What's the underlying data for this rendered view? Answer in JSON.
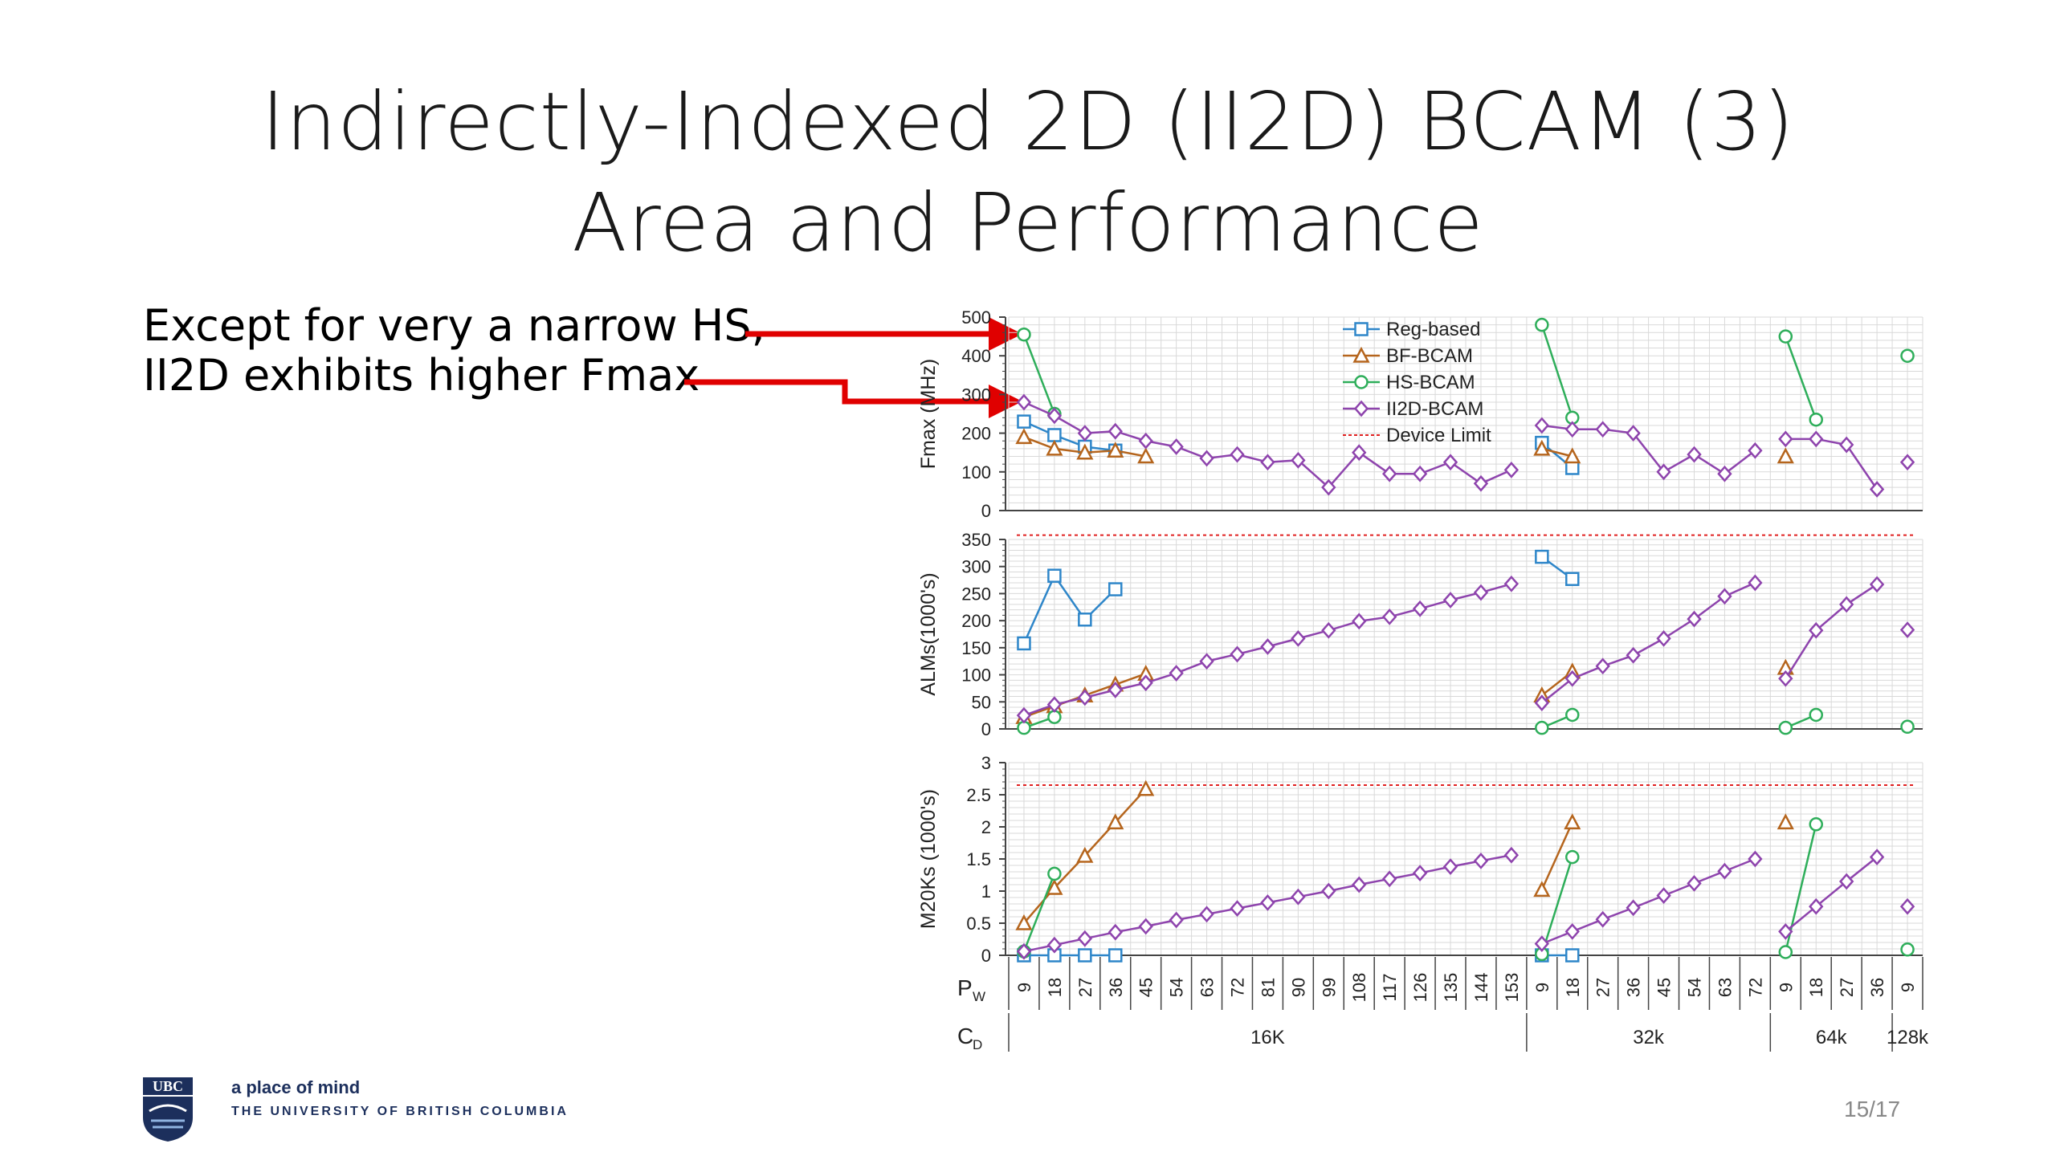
{
  "slide": {
    "title_line1": "Indirectly-Indexed 2D (II2D) BCAM (3)",
    "title_line2": "Area and Performance",
    "callout_line1": "Except for very a narrow HS,",
    "callout_line2": "II2D exhibits higher Fmax",
    "tagline": "a place of mind",
    "university": "THE UNIVERSITY OF BRITISH COLUMBIA",
    "logo_text": "UBC",
    "page_number": "15/17"
  },
  "chart_data": {
    "type": "line",
    "x_axis": {
      "row1_label": "P",
      "row1_label_sub": "W",
      "row2_label": "C",
      "row2_label_sub": "D",
      "groups": [
        {
          "label": "16K",
          "pw": [
            "9",
            "18",
            "27",
            "36",
            "45",
            "54",
            "63",
            "72",
            "81",
            "90",
            "99",
            "108",
            "117",
            "126",
            "135",
            "144",
            "153"
          ]
        },
        {
          "label": "32k",
          "pw": [
            "9",
            "18",
            "27",
            "36",
            "45",
            "54",
            "63",
            "72"
          ]
        },
        {
          "label": "64k",
          "pw": [
            "9",
            "18",
            "27",
            "36"
          ]
        },
        {
          "label": "128k",
          "pw": [
            "9"
          ]
        }
      ]
    },
    "legend": {
      "placement": "top-center of first panel",
      "entries": [
        "Reg-based",
        "BF-BCAM",
        "HS-BCAM",
        "II2D-BCAM",
        "Device Limit"
      ]
    },
    "colors": {
      "Reg-based": "#2e86c9",
      "BF-BCAM": "#b5651d",
      "HS-BCAM": "#2eae5a",
      "II2D-BCAM": "#8e44ad",
      "Device Limit": "#e02020",
      "grid": "#d9d9d9"
    },
    "panels": [
      {
        "ylabel": "Fmax (MHz)",
        "ylim": [
          0,
          500
        ],
        "yticks": [
          "0",
          "100",
          "200",
          "300",
          "400",
          "500"
        ],
        "device_limit": null,
        "series": [
          {
            "name": "Reg-based",
            "segments": [
              [
                [
                  0,
                  230
                ],
                [
                  1,
                  195
                ],
                [
                  2,
                  165
                ],
                [
                  3,
                  155
                ]
              ],
              [
                [
                  17,
                  175
                ],
                [
                  18,
                  110
                ]
              ]
            ]
          },
          {
            "name": "BF-BCAM",
            "segments": [
              [
                [
                  0,
                  190
                ],
                [
                  1,
                  160
                ],
                [
                  2,
                  150
                ],
                [
                  3,
                  155
                ],
                [
                  4,
                  140
                ]
              ],
              [
                [
                  17,
                  160
                ],
                [
                  18,
                  140
                ]
              ],
              [
                [
                  25,
                  140
                ]
              ]
            ]
          },
          {
            "name": "HS-BCAM",
            "segments": [
              [
                [
                  0,
                  455
                ],
                [
                  1,
                  250
                ]
              ],
              [
                [
                  17,
                  480
                ],
                [
                  18,
                  240
                ]
              ],
              [
                [
                  25,
                  450
                ],
                [
                  26,
                  235
                ]
              ],
              [
                [
                  29,
                  400
                ]
              ]
            ]
          },
          {
            "name": "II2D-BCAM",
            "segments": [
              [
                [
                  0,
                  280
                ],
                [
                  1,
                  245
                ],
                [
                  2,
                  200
                ],
                [
                  3,
                  205
                ],
                [
                  4,
                  180
                ],
                [
                  5,
                  165
                ],
                [
                  6,
                  135
                ],
                [
                  7,
                  145
                ],
                [
                  8,
                  125
                ],
                [
                  9,
                  130
                ],
                [
                  10,
                  60
                ],
                [
                  11,
                  150
                ],
                [
                  12,
                  95
                ],
                [
                  13,
                  95
                ],
                [
                  14,
                  125
                ],
                [
                  15,
                  70
                ],
                [
                  16,
                  105
                ]
              ],
              [
                [
                  17,
                  220
                ],
                [
                  18,
                  210
                ],
                [
                  19,
                  210
                ],
                [
                  20,
                  200
                ],
                [
                  21,
                  100
                ],
                [
                  22,
                  145
                ],
                [
                  23,
                  95
                ],
                [
                  24,
                  155
                ]
              ],
              [
                [
                  25,
                  185
                ],
                [
                  26,
                  185
                ],
                [
                  27,
                  170
                ],
                [
                  28,
                  55
                ]
              ],
              [
                [
                  29,
                  125
                ]
              ]
            ]
          }
        ]
      },
      {
        "ylabel": "ALMs(1000's)",
        "ylim": [
          0,
          350
        ],
        "yticks": [
          "0",
          "50",
          "100",
          "150",
          "200",
          "250",
          "300",
          "350"
        ],
        "device_limit": 358,
        "series": [
          {
            "name": "Reg-based",
            "segments": [
              [
                [
                  0,
                  158
                ],
                [
                  1,
                  283
                ],
                [
                  2,
                  202
                ],
                [
                  3,
                  258
                ]
              ],
              [
                [
                  17,
                  318
                ],
                [
                  18,
                  277
                ]
              ]
            ]
          },
          {
            "name": "BF-BCAM",
            "segments": [
              [
                [
                  0,
                  22
                ],
                [
                  1,
                  42
                ],
                [
                  2,
                  62
                ],
                [
                  3,
                  82
                ],
                [
                  4,
                  102
                ]
              ],
              [
                [
                  17,
                  62
                ],
                [
                  18,
                  106
                ]
              ],
              [
                [
                  25,
                  113
                ]
              ]
            ]
          },
          {
            "name": "HS-BCAM",
            "segments": [
              [
                [
                  0,
                  2
                ],
                [
                  1,
                  22
                ]
              ],
              [
                [
                  17,
                  2
                ],
                [
                  18,
                  26
                ]
              ],
              [
                [
                  25,
                  2
                ],
                [
                  26,
                  26
                ]
              ],
              [
                [
                  29,
                  4
                ]
              ]
            ]
          },
          {
            "name": "II2D-BCAM",
            "segments": [
              [
                [
                  0,
                  25
                ],
                [
                  1,
                  45
                ],
                [
                  2,
                  58
                ],
                [
                  3,
                  72
                ],
                [
                  4,
                  85
                ],
                [
                  5,
                  103
                ],
                [
                  6,
                  125
                ],
                [
                  7,
                  138
                ],
                [
                  8,
                  152
                ],
                [
                  9,
                  167
                ],
                [
                  10,
                  182
                ],
                [
                  11,
                  199
                ],
                [
                  12,
                  207
                ],
                [
                  13,
                  222
                ],
                [
                  14,
                  238
                ],
                [
                  15,
                  252
                ],
                [
                  16,
                  268
                ]
              ],
              [
                [
                  17,
                  48
                ],
                [
                  18,
                  93
                ],
                [
                  19,
                  116
                ],
                [
                  20,
                  136
                ],
                [
                  21,
                  167
                ],
                [
                  22,
                  203
                ],
                [
                  23,
                  245
                ],
                [
                  24,
                  270
                ]
              ],
              [
                [
                  25,
                  93
                ],
                [
                  26,
                  182
                ],
                [
                  27,
                  230
                ],
                [
                  28,
                  267
                ]
              ],
              [
                [
                  29,
                  183
                ]
              ]
            ]
          }
        ]
      },
      {
        "ylabel": "M20Ks (1000's)",
        "ylim": [
          0,
          3
        ],
        "yticks": [
          "0",
          "0.5",
          "1",
          "1.5",
          "2",
          "2.5",
          "3"
        ],
        "device_limit": 2.65,
        "series": [
          {
            "name": "Reg-based",
            "segments": [
              [
                [
                  0,
                  0
                ],
                [
                  1,
                  0
                ],
                [
                  2,
                  0
                ],
                [
                  3,
                  0
                ]
              ],
              [
                [
                  17,
                  0
                ],
                [
                  18,
                  0
                ]
              ]
            ]
          },
          {
            "name": "BF-BCAM",
            "segments": [
              [
                [
                  0,
                  0.5
                ],
                [
                  1,
                  1.05
                ],
                [
                  2,
                  1.55
                ],
                [
                  3,
                  2.07
                ],
                [
                  4,
                  2.59
                ]
              ],
              [
                [
                  17,
                  1.02
                ],
                [
                  18,
                  2.07
                ]
              ],
              [
                [
                  25,
                  2.07
                ]
              ]
            ]
          },
          {
            "name": "HS-BCAM",
            "segments": [
              [
                [
                  0,
                  0.06
                ],
                [
                  1,
                  1.27
                ]
              ],
              [
                [
                  17,
                  0.02
                ],
                [
                  18,
                  1.53
                ]
              ],
              [
                [
                  25,
                  0.05
                ],
                [
                  26,
                  2.04
                ]
              ],
              [
                [
                  29,
                  0.09
                ]
              ]
            ]
          },
          {
            "name": "II2D-BCAM",
            "segments": [
              [
                [
                  0,
                  0.06
                ],
                [
                  1,
                  0.16
                ],
                [
                  2,
                  0.26
                ],
                [
                  3,
                  0.36
                ],
                [
                  4,
                  0.45
                ],
                [
                  5,
                  0.55
                ],
                [
                  6,
                  0.64
                ],
                [
                  7,
                  0.73
                ],
                [
                  8,
                  0.82
                ],
                [
                  9,
                  0.91
                ],
                [
                  10,
                  1.0
                ],
                [
                  11,
                  1.1
                ],
                [
                  12,
                  1.19
                ],
                [
                  13,
                  1.28
                ],
                [
                  14,
                  1.38
                ],
                [
                  15,
                  1.47
                ],
                [
                  16,
                  1.56
                ]
              ],
              [
                [
                  17,
                  0.18
                ],
                [
                  18,
                  0.37
                ],
                [
                  19,
                  0.56
                ],
                [
                  20,
                  0.74
                ],
                [
                  21,
                  0.93
                ],
                [
                  22,
                  1.12
                ],
                [
                  23,
                  1.31
                ],
                [
                  24,
                  1.5
                ]
              ],
              [
                [
                  25,
                  0.37
                ],
                [
                  26,
                  0.76
                ],
                [
                  27,
                  1.15
                ],
                [
                  28,
                  1.53
                ]
              ],
              [
                [
                  29,
                  0.76
                ]
              ]
            ]
          }
        ]
      }
    ]
  }
}
